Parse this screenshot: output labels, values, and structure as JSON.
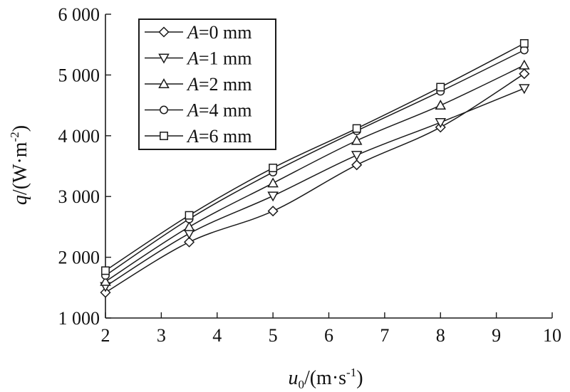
{
  "chart_data": {
    "type": "line",
    "xlabel": {
      "var": "u",
      "sub": "0",
      "unit_pre": "/(m·s",
      "unit_sup": "-1",
      "unit_post": ")"
    },
    "ylabel": {
      "var": "q",
      "unit_pre": "/(W·m",
      "unit_sup": "-2",
      "unit_post": ")"
    },
    "xlim": [
      2,
      10
    ],
    "ylim": [
      1000,
      6000
    ],
    "xticks": [
      2,
      3,
      4,
      5,
      6,
      7,
      8,
      9,
      10
    ],
    "xtick_labels": [
      "2",
      "3",
      "4",
      "5",
      "6",
      "7",
      "8",
      "9",
      "10"
    ],
    "yticks": [
      1000,
      2000,
      3000,
      4000,
      5000,
      6000
    ],
    "ytick_labels": [
      "1 000",
      "2 000",
      "3 000",
      "4 000",
      "5 000",
      "6 000"
    ],
    "grid": false,
    "legend_position": "top-left",
    "x": [
      2,
      3.5,
      5,
      6.5,
      8,
      9.5
    ],
    "series": [
      {
        "name": "A=0 mm",
        "label_var": "A",
        "label_rest": "=0 mm",
        "marker": "diamond",
        "values": [
          1420,
          2250,
          2760,
          3520,
          4140,
          5020
        ]
      },
      {
        "name": "A=1 mm",
        "label_var": "A",
        "label_rest": "=1 mm",
        "marker": "triangle-down",
        "values": [
          1520,
          2390,
          3010,
          3680,
          4220,
          4780
        ]
      },
      {
        "name": "A=2 mm",
        "label_var": "A",
        "label_rest": "=2 mm",
        "marker": "triangle-up",
        "values": [
          1600,
          2500,
          3220,
          3920,
          4500,
          5160
        ]
      },
      {
        "name": "A=4 mm",
        "label_var": "A",
        "label_rest": "=4 mm",
        "marker": "circle",
        "values": [
          1700,
          2630,
          3400,
          4080,
          4730,
          5410
        ]
      },
      {
        "name": "A=6 mm",
        "label_var": "A",
        "label_rest": "=6 mm",
        "marker": "square",
        "values": [
          1780,
          2690,
          3470,
          4120,
          4800,
          5520
        ]
      }
    ],
    "line_color": "#1a1a1a"
  }
}
